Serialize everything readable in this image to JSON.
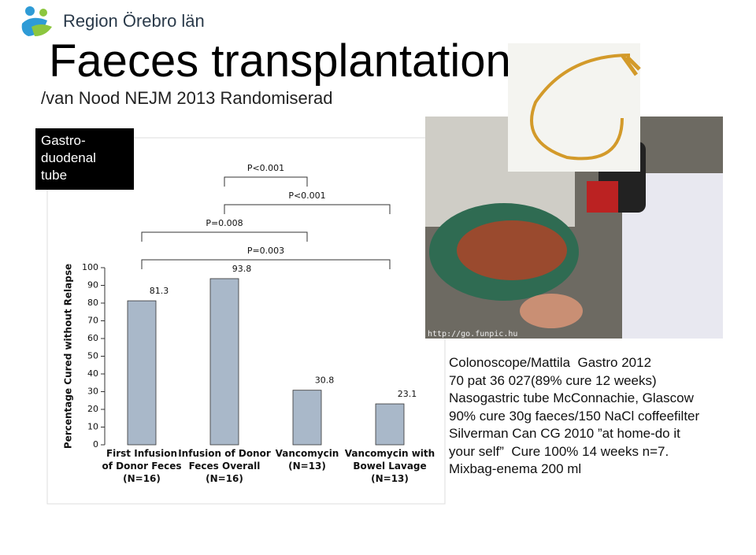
{
  "header": {
    "org": "Region Örebro län",
    "title": "Faeces transplantation",
    "subtitle": "/van Nood NEJM 2013 Randomiserad"
  },
  "box_label": "Gastro-\nduodenal\ntube",
  "photo_caption": "http://go.funpic.hu",
  "chart_data": {
    "type": "bar",
    "ylabel": "Percentage Cured without Relapse",
    "categories": [
      "First Infusion\nof Donor Feces\n(N=16)",
      "Infusion of Donor\nFeces Overall\n(N=16)",
      "Vancomycin\n(N=13)",
      "Vancomycin with\nBowel Lavage\n(N=13)"
    ],
    "values": [
      81.3,
      93.8,
      30.8,
      23.1
    ],
    "color": "#a9b8c9",
    "ylim": [
      0,
      100
    ],
    "yticks": [
      0,
      10,
      20,
      30,
      40,
      50,
      60,
      70,
      80,
      90,
      100
    ],
    "comparisons": [
      {
        "label": "P<0.001",
        "from": 1,
        "to": 2
      },
      {
        "label": "P<0.001",
        "from": 1,
        "to": 3
      },
      {
        "label": "P=0.008",
        "from": 0,
        "to": 2
      },
      {
        "label": "P=0.003",
        "from": 0,
        "to": 3
      }
    ]
  },
  "notes": [
    "Colonoscope/Mattila  Gastro 2012",
    "70 pat 36 027(89% cure 12 weeks)",
    "Nasogastric tube McConnachie, Glascow",
    "90% cure 30g faeces/150 NaCl coffeefilter",
    "Silverman Can CG 2010 ”at home-do it",
    "your self”  Cure 100% 14 weeks n=7.",
    "Mixbag-enema 200 ml"
  ]
}
